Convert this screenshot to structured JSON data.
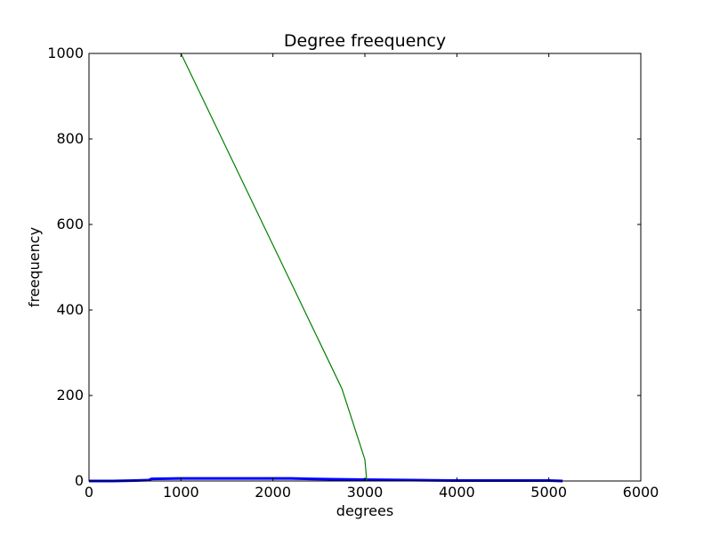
{
  "chart_data": {
    "type": "line",
    "title": "Degree freequency",
    "xlabel": "degrees",
    "ylabel": "freequency",
    "xlim": [
      0,
      6000
    ],
    "ylim": [
      0,
      1000
    ],
    "xticks": [
      0,
      1000,
      2000,
      3000,
      4000,
      5000,
      6000
    ],
    "yticks": [
      0,
      200,
      400,
      600,
      800,
      1000
    ],
    "grid": false,
    "legend": "none",
    "series": [
      {
        "color": "#0000ff",
        "line_width": 3,
        "x": [
          0,
          250,
          500,
          650,
          680,
          1000,
          1500,
          2000,
          2200,
          2400,
          2700,
          3000,
          3500,
          4000,
          4500,
          5000,
          5150
        ],
        "y": [
          0,
          0,
          1,
          2,
          5,
          6,
          6,
          6,
          6,
          5,
          4,
          3,
          2,
          1,
          1,
          1,
          0
        ]
      },
      {
        "color": "#008000",
        "line_width": 1.2,
        "x": [
          1000,
          1250,
          1500,
          1750,
          2000,
          2250,
          2500,
          2750,
          3000,
          3020
        ],
        "y": [
          1000,
          888,
          776,
          664,
          552,
          440,
          328,
          216,
          50,
          0
        ]
      }
    ]
  }
}
